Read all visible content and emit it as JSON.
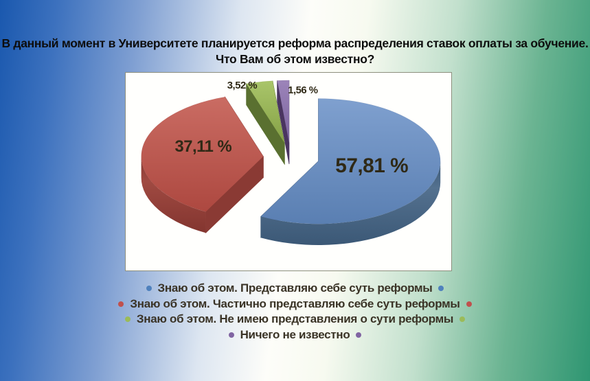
{
  "title": {
    "line1": "В данный момент в Университете планируется реформа распределения ставок оплаты за обучение.",
    "line2": "Что Вам об этом известно?"
  },
  "background": {
    "left_color": "#1a58ae",
    "center_color": "#fdfdf9",
    "right_color": "#2f9672"
  },
  "panel": {
    "background": "#fffffd",
    "border_color": "#8d8f7d"
  },
  "chart_data": {
    "type": "pie",
    "is_3d": true,
    "exploded": true,
    "start_angle_deg": 0,
    "direction": "clockwise",
    "legend_position": "bottom",
    "value_label_color": "#2f2916",
    "slices": [
      {
        "label": "Знаю об этом. Представляю себе суть реформы",
        "value": 57.81,
        "value_label": "57,81 %",
        "color": "#4f81bd",
        "fill_light": "#7fa0cf",
        "fill_dark": "#5a7fb2",
        "side_light": "#54718f",
        "side_dark": "#3b5876",
        "cut_face": "#3d5a78"
      },
      {
        "label": "Знаю об этом. Частично представляю себе суть реформы",
        "value": 37.11,
        "value_label": "37,11 %",
        "color": "#c0504d",
        "fill_light": "#ca6c63",
        "fill_dark": "#ad4840",
        "side_light": "#a04a42",
        "side_dark": "#83352f",
        "cut_face": "#8a3a34"
      },
      {
        "label": "Знаю об этом. Не имею представления о сути реформы",
        "value": 3.52,
        "value_label": "3,52 %",
        "color": "#9bbb59",
        "fill_light": "#a9c56a",
        "fill_dark": "#85a145",
        "side_light": "#6d8639",
        "side_dark": "#55692c",
        "cut_face": "#5a7030"
      },
      {
        "label": "Ничего не известно",
        "value": 1.56,
        "value_label": "1,56 %",
        "color": "#8064a2",
        "fill_light": "#9c84b9",
        "fill_dark": "#7a639e",
        "side_light": "#5c4477",
        "side_dark": "#44305c",
        "cut_face": "#4a3560"
      }
    ]
  }
}
